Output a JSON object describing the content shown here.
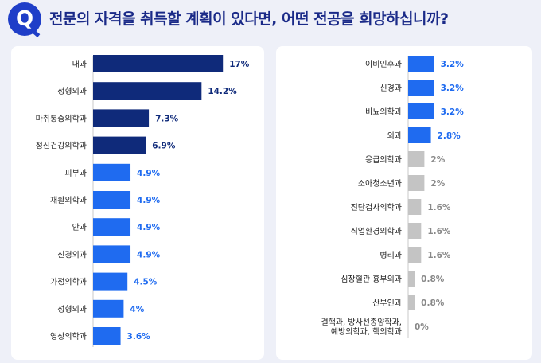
{
  "header": {
    "badge": "Q",
    "title": "전문의 자격을 취득할 계획이 있다면, 어떤 전공을 희망하십니까?"
  },
  "colors": {
    "dark_navy": "#0f2a7a",
    "bright_blue": "#1f6bf0",
    "gray": "#c4c4c4"
  },
  "chart_data": [
    {
      "type": "bar",
      "orientation": "horizontal",
      "categories": [
        "내과",
        "정형외과",
        "마취통증의학과",
        "정신건강의학과",
        "피부과",
        "재활의학과",
        "안과",
        "신경외과",
        "가정의학과",
        "성형외과",
        "영상의학과"
      ],
      "values": [
        17,
        14.2,
        7.3,
        6.9,
        4.9,
        4.9,
        4.9,
        4.9,
        4.5,
        4,
        3.6
      ],
      "labels": [
        "17%",
        "14.2%",
        "7.3%",
        "6.9%",
        "4.9%",
        "4.9%",
        "4.9%",
        "4.9%",
        "4.5%",
        "4%",
        "3.6%"
      ],
      "bar_colors": [
        "#0f2a7a",
        "#0f2a7a",
        "#0f2a7a",
        "#0f2a7a",
        "#1f6bf0",
        "#1f6bf0",
        "#1f6bf0",
        "#1f6bf0",
        "#1f6bf0",
        "#1f6bf0",
        "#1f6bf0"
      ],
      "label_colors": [
        "#0f2a7a",
        "#0f2a7a",
        "#0f2a7a",
        "#0f2a7a",
        "#1f6bf0",
        "#1f6bf0",
        "#1f6bf0",
        "#1f6bf0",
        "#1f6bf0",
        "#1f6bf0",
        "#1f6bf0"
      ]
    },
    {
      "type": "bar",
      "orientation": "horizontal",
      "categories": [
        "이비인후과",
        "신경과",
        "비뇨의학과",
        "외과",
        "응급의학과",
        "소아청소년과",
        "진단검사의학과",
        "직업환경의학과",
        "병리과",
        "심장혈관 흉부외과",
        "산부인과",
        "결핵과, 방사선종양학과,\n예방의학과, 핵의학과"
      ],
      "values": [
        3.2,
        3.2,
        3.2,
        2.8,
        2,
        2,
        1.6,
        1.6,
        1.6,
        0.8,
        0.8,
        0
      ],
      "labels": [
        "3.2%",
        "3.2%",
        "3.2%",
        "2.8%",
        "2%",
        "2%",
        "1.6%",
        "1.6%",
        "1.6%",
        "0.8%",
        "0.8%",
        "0%"
      ],
      "bar_colors": [
        "#1f6bf0",
        "#1f6bf0",
        "#1f6bf0",
        "#1f6bf0",
        "#c4c4c4",
        "#c4c4c4",
        "#c4c4c4",
        "#c4c4c4",
        "#c4c4c4",
        "#c4c4c4",
        "#c4c4c4",
        "#c4c4c4"
      ],
      "label_colors": [
        "#1f6bf0",
        "#1f6bf0",
        "#1f6bf0",
        "#1f6bf0",
        "#888888",
        "#888888",
        "#888888",
        "#888888",
        "#888888",
        "#888888",
        "#888888",
        "#888888"
      ]
    }
  ]
}
